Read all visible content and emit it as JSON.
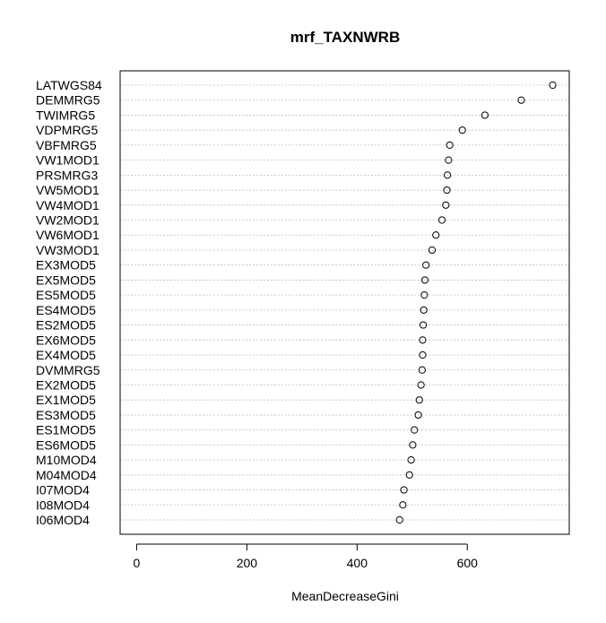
{
  "chart_data": {
    "type": "scatter",
    "title": "mrf_TAXNWRB",
    "xlabel": "MeanDecreaseGini",
    "ylabel": "",
    "xlim": [
      -30,
      785
    ],
    "xticks": [
      "0",
      "200",
      "400",
      "600"
    ],
    "grid": "horizontal-dotted",
    "categories": [
      "LATWGS84",
      "DEMMRG5",
      "TWIMRG5",
      "VDPMRG5",
      "VBFMRG5",
      "VW1MOD1",
      "PRSMRG3",
      "VW5MOD1",
      "VW4MOD1",
      "VW2MOD1",
      "VW6MOD1",
      "VW3MOD1",
      "EX3MOD5",
      "EX5MOD5",
      "ES5MOD5",
      "ES4MOD5",
      "ES2MOD5",
      "EX6MOD5",
      "EX4MOD5",
      "DVMMRG5",
      "EX2MOD5",
      "EX1MOD5",
      "ES3MOD5",
      "ES1MOD5",
      "ES6MOD5",
      "M10MOD4",
      "M04MOD4",
      "I07MOD4",
      "I08MOD4",
      "I06MOD4"
    ],
    "values": [
      755,
      698,
      632,
      591,
      568,
      566,
      564,
      563,
      561,
      554,
      543,
      536,
      525,
      523,
      522,
      521,
      520,
      519,
      519,
      518,
      516,
      513,
      511,
      504,
      501,
      498,
      495,
      485,
      483,
      477
    ]
  }
}
